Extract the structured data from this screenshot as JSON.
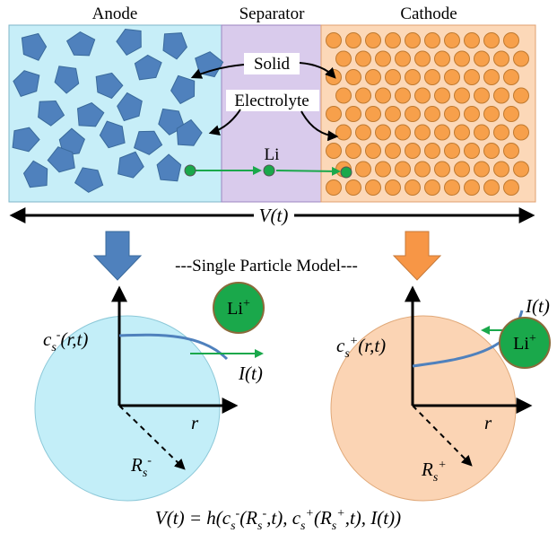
{
  "labels": {
    "anode": "Anode",
    "separator": "Separator",
    "cathode": "Cathode",
    "solid": "Solid",
    "electrolyte": "Electrolyte",
    "li": "Li",
    "voltage": "V(t)",
    "model": "---Single Particle Model---"
  },
  "anode_particle": {
    "concentration": [
      "c",
      "s",
      "-",
      "(r,t)"
    ],
    "current": "I(t)",
    "radius_axis": "r",
    "radius": [
      "R",
      "s",
      "-"
    ],
    "ion": [
      "Li",
      "+"
    ]
  },
  "cathode_particle": {
    "concentration": [
      "c",
      "s",
      "+",
      "(r,t)"
    ],
    "current": "I(t)",
    "radius_axis": "r",
    "radius": [
      "R",
      "s",
      "+"
    ],
    "ion": [
      "Li",
      "+"
    ]
  },
  "equation": [
    "V(t) = h(c",
    "s",
    "-",
    "(R",
    "s",
    "-",
    ",t), c",
    "s",
    "+",
    "(R",
    "s",
    "+",
    ",t), I(t))"
  ]
}
